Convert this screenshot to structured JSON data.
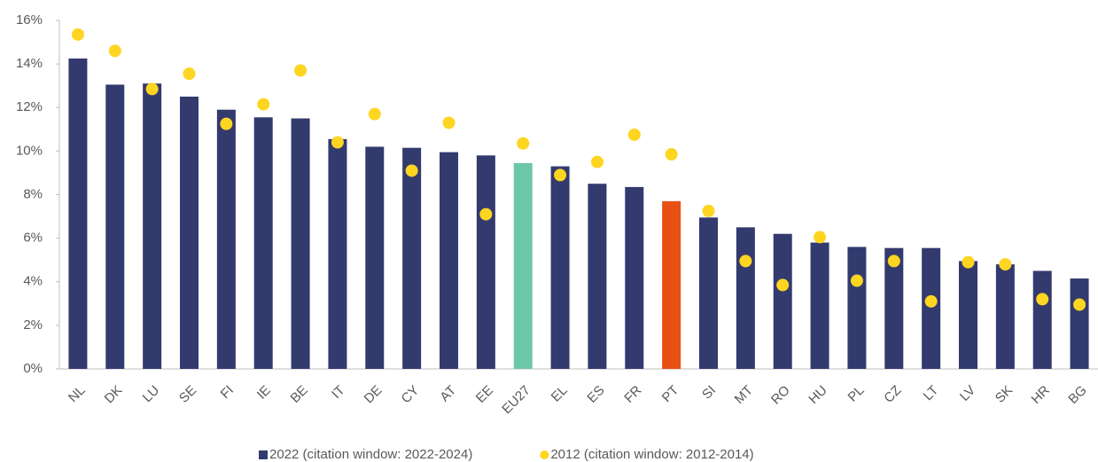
{
  "chart_data": {
    "type": "bar",
    "categories": [
      "NL",
      "DK",
      "LU",
      "SE",
      "FI",
      "IE",
      "BE",
      "IT",
      "DE",
      "CY",
      "AT",
      "EE",
      "EU27",
      "EL",
      "ES",
      "FR",
      "PT",
      "SI",
      "MT",
      "RO",
      "HU",
      "PL",
      "CZ",
      "LT",
      "LV",
      "SK",
      "HR",
      "BG"
    ],
    "series": [
      {
        "name": "2022 (citation window: 2022-2024)",
        "type": "bar",
        "color": "#333a6e",
        "colors": [
          "#333a6e",
          "#333a6e",
          "#333a6e",
          "#333a6e",
          "#333a6e",
          "#333a6e",
          "#333a6e",
          "#333a6e",
          "#333a6e",
          "#333a6e",
          "#333a6e",
          "#333a6e",
          "#6cc7a8",
          "#333a6e",
          "#333a6e",
          "#333a6e",
          "#e85014",
          "#333a6e",
          "#333a6e",
          "#333a6e",
          "#333a6e",
          "#333a6e",
          "#333a6e",
          "#333a6e",
          "#333a6e",
          "#333a6e",
          "#333a6e",
          "#333a6e"
        ],
        "values": [
          14.25,
          13.05,
          13.1,
          12.5,
          11.9,
          11.55,
          11.5,
          10.55,
          10.2,
          10.15,
          9.95,
          9.8,
          9.45,
          9.3,
          8.5,
          8.35,
          7.7,
          6.95,
          6.5,
          6.2,
          5.8,
          5.6,
          5.55,
          5.55,
          4.95,
          4.8,
          4.5,
          4.15
        ]
      },
      {
        "name": "2012 (citation window: 2012-2014)",
        "type": "scatter",
        "color": "#fed520",
        "values": [
          15.35,
          14.6,
          12.85,
          13.55,
          11.25,
          12.15,
          13.7,
          10.4,
          11.7,
          9.1,
          11.3,
          7.1,
          10.35,
          8.9,
          9.5,
          10.75,
          9.85,
          7.25,
          4.95,
          3.85,
          6.05,
          4.05,
          4.95,
          3.1,
          4.9,
          4.8,
          3.2,
          2.95
        ]
      }
    ],
    "ylim": [
      0,
      16
    ],
    "yticks": [
      {
        "value": 0,
        "label": "0%"
      },
      {
        "value": 2,
        "label": "2%"
      },
      {
        "value": 4,
        "label": "4%"
      },
      {
        "value": 6,
        "label": "6%"
      },
      {
        "value": 8,
        "label": "8%"
      },
      {
        "value": 10,
        "label": "10%"
      },
      {
        "value": 12,
        "label": "12%"
      },
      {
        "value": 14,
        "label": "14%"
      },
      {
        "value": 16,
        "label": "16%"
      }
    ],
    "legend": "bottom"
  }
}
